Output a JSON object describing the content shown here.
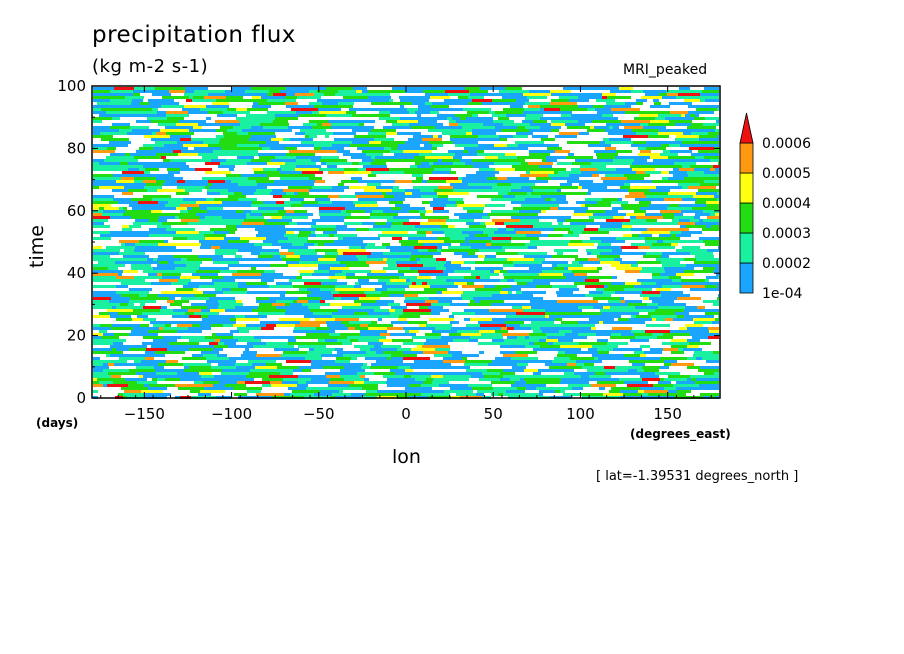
{
  "title": "precipitation flux",
  "units": "(kg m-2 s-1)",
  "model": "MRI_peaked",
  "lat_note": "[ lat=-1.39531 degrees_north ]",
  "colors": {
    "white": "#ffffff",
    "blue": "#1aa6ff",
    "cyan": "#19f0a0",
    "green": "#22dd11",
    "yellow": "#ffff11",
    "orange": "#ff9910",
    "red": "#ee1111"
  },
  "chart_data": {
    "type": "heatmap",
    "title": "precipitation flux",
    "subtitle": "(kg m-2 s-1)",
    "xlabel": "lon",
    "ylabel": "time",
    "x_unit": "(degrees_east)",
    "y_unit": "(days)",
    "xlim": [
      -180,
      180
    ],
    "ylim": [
      0,
      100
    ],
    "x_ticks": [
      -150,
      -100,
      -50,
      0,
      50,
      100,
      150
    ],
    "x_tick_labels": [
      "−150",
      "−100",
      "−50",
      "0",
      "50",
      "100",
      "150"
    ],
    "y_ticks": [
      0,
      20,
      40,
      60,
      80,
      100
    ],
    "y_tick_labels": [
      "0",
      "20",
      "40",
      "60",
      "80",
      "100"
    ],
    "colorbar": {
      "levels": [
        0.0001,
        0.0002,
        0.0003,
        0.0004,
        0.0005,
        0.0006
      ],
      "labels": [
        "1e-04",
        "0.0002",
        "0.0003",
        "0.0004",
        "0.0005",
        "0.0006"
      ],
      "extend": "max"
    },
    "grid": false
  }
}
